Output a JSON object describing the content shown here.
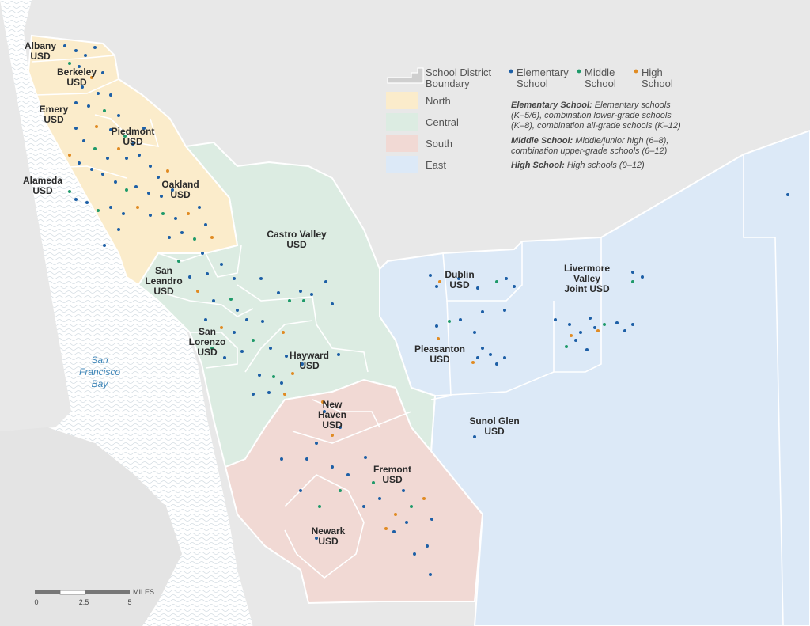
{
  "legend": {
    "boundary": [
      "School District",
      "Boundary"
    ],
    "types": [
      {
        "lines": [
          "Elementary",
          "School"
        ],
        "color": "#1d5fa6"
      },
      {
        "lines": [
          "Middle",
          "School"
        ],
        "color": "#1f9a6a"
      },
      {
        "lines": [
          "High",
          "School"
        ],
        "color": "#e08b23"
      }
    ],
    "regions": [
      "North",
      "Central",
      "South",
      "East"
    ],
    "region_colors": {
      "North": "#fbeccb",
      "Central": "#dcece2",
      "South": "#f1d9d4",
      "East": "#dce9f7"
    }
  },
  "notes": {
    "elementary": {
      "label": "Elementary School:",
      "lines": [
        " Elementary schools",
        "(K–5/6), combination lower-grade schools",
        "(K–8), combination all-grade schools (K–12)"
      ]
    },
    "middle": {
      "label": "Middle School:",
      "lines": [
        " Middle/junior high (6–8),",
        "combination upper-grade schools (6–12)"
      ]
    },
    "high": {
      "label": "High School:",
      "lines": [
        " High schools (9–12)"
      ]
    }
  },
  "districts": [
    {
      "lines": [
        "Albany",
        "USD"
      ]
    },
    {
      "lines": [
        "Berkeley",
        "USD"
      ]
    },
    {
      "lines": [
        "Emery",
        "USD"
      ]
    },
    {
      "lines": [
        "Piedmont",
        "USD"
      ]
    },
    {
      "lines": [
        "Alameda",
        "USD"
      ]
    },
    {
      "lines": [
        "Oakland",
        "USD"
      ]
    },
    {
      "lines": [
        "Castro Valley",
        "USD"
      ]
    },
    {
      "lines": [
        "San",
        "Leandro",
        "USD"
      ]
    },
    {
      "lines": [
        "San",
        "Lorenzo",
        "USD"
      ]
    },
    {
      "lines": [
        "Hayward",
        "USD"
      ]
    },
    {
      "lines": [
        "New",
        "Haven",
        "USD"
      ]
    },
    {
      "lines": [
        "Fremont",
        "USD"
      ]
    },
    {
      "lines": [
        "Newark",
        "USD"
      ]
    },
    {
      "lines": [
        "Dublin",
        "USD"
      ]
    },
    {
      "lines": [
        "Livermore",
        "Valley",
        "Joint USD"
      ]
    },
    {
      "lines": [
        "Pleasanton",
        "USD"
      ]
    },
    {
      "lines": [
        "Sunol Glen",
        "USD"
      ]
    }
  ],
  "bay": {
    "lines": [
      "San",
      "Francisco",
      "Bay"
    ]
  },
  "scale": {
    "unit": "MILES",
    "ticks": [
      "0",
      "2.5",
      "5"
    ]
  }
}
